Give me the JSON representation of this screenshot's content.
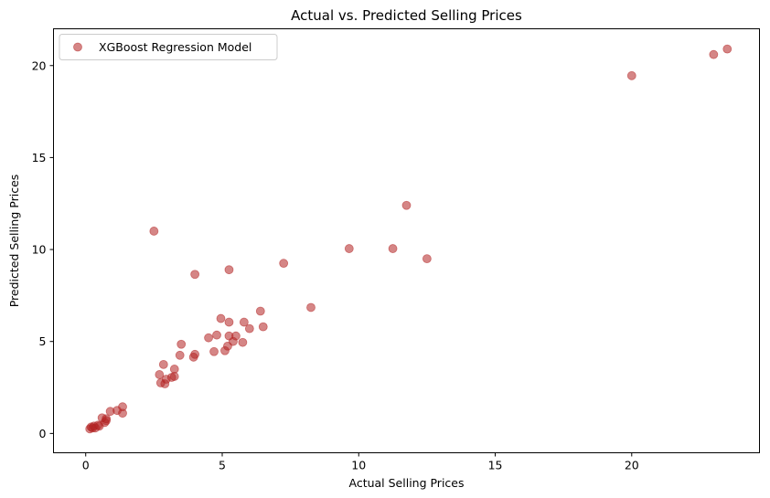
{
  "chart_data": {
    "type": "scatter",
    "title": "Actual vs. Predicted Selling Prices",
    "xlabel": "Actual Selling Prices",
    "ylabel": "Predicted Selling Prices",
    "xlim": [
      -1.18,
      24.68
    ],
    "ylim": [
      -1.05,
      22.0
    ],
    "xticks": [
      0,
      5,
      10,
      15,
      20
    ],
    "yticks": [
      0,
      5,
      10,
      15,
      20
    ],
    "grid": false,
    "legend": "upper-left",
    "series": [
      {
        "name": "XGBoost Regression Model",
        "color": "#b22222",
        "alpha": 0.55,
        "points": [
          [
            0.15,
            0.25
          ],
          [
            0.2,
            0.35
          ],
          [
            0.25,
            0.3
          ],
          [
            0.3,
            0.4
          ],
          [
            0.35,
            0.3
          ],
          [
            0.45,
            0.45
          ],
          [
            0.5,
            0.4
          ],
          [
            0.6,
            0.85
          ],
          [
            0.7,
            0.6
          ],
          [
            0.75,
            0.7
          ],
          [
            0.75,
            0.8
          ],
          [
            0.9,
            1.2
          ],
          [
            1.15,
            1.25
          ],
          [
            1.35,
            1.45
          ],
          [
            1.35,
            1.1
          ],
          [
            2.5,
            11.0
          ],
          [
            2.7,
            3.2
          ],
          [
            2.75,
            2.75
          ],
          [
            2.85,
            3.75
          ],
          [
            2.9,
            2.7
          ],
          [
            2.95,
            2.95
          ],
          [
            3.15,
            3.05
          ],
          [
            3.25,
            3.1
          ],
          [
            3.25,
            3.5
          ],
          [
            3.45,
            4.25
          ],
          [
            3.5,
            4.85
          ],
          [
            3.95,
            4.15
          ],
          [
            4.0,
            4.3
          ],
          [
            4.0,
            8.65
          ],
          [
            4.5,
            5.2
          ],
          [
            4.7,
            4.45
          ],
          [
            4.8,
            5.35
          ],
          [
            4.95,
            6.25
          ],
          [
            5.1,
            4.5
          ],
          [
            5.2,
            4.75
          ],
          [
            5.25,
            5.3
          ],
          [
            5.25,
            6.05
          ],
          [
            5.25,
            8.9
          ],
          [
            5.4,
            5.0
          ],
          [
            5.5,
            5.3
          ],
          [
            5.75,
            4.95
          ],
          [
            5.8,
            6.05
          ],
          [
            6.0,
            5.7
          ],
          [
            6.4,
            6.65
          ],
          [
            6.5,
            5.8
          ],
          [
            7.25,
            9.25
          ],
          [
            8.25,
            6.85
          ],
          [
            9.65,
            10.05
          ],
          [
            11.25,
            10.05
          ],
          [
            11.75,
            12.4
          ],
          [
            12.5,
            9.5
          ],
          [
            20.0,
            19.45
          ],
          [
            23.0,
            20.6
          ],
          [
            23.5,
            20.9
          ]
        ]
      }
    ]
  }
}
